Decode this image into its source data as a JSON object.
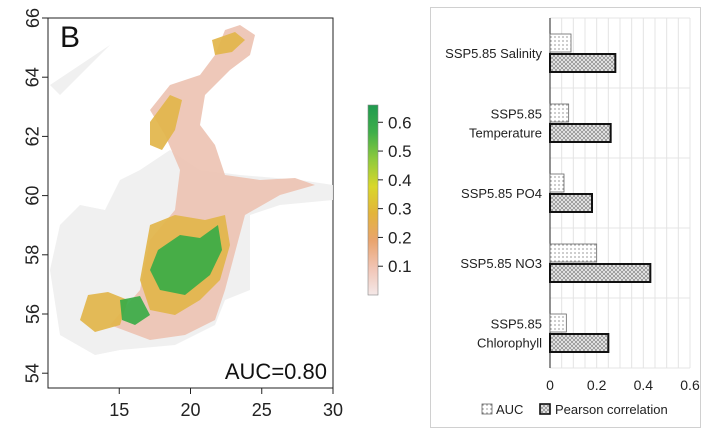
{
  "chart_data": [
    {
      "type": "heatmap",
      "panel_label": "B",
      "annotation": "AUC=0.80",
      "xlim": [
        10,
        30
      ],
      "ylim": [
        53.5,
        66
      ],
      "x_ticks": [
        15,
        20,
        25,
        30
      ],
      "y_ticks": [
        54,
        56,
        58,
        60,
        62,
        64,
        66
      ],
      "colorbar": {
        "range": [
          0,
          0.66
        ],
        "ticks": [
          0.1,
          0.2,
          0.3,
          0.4,
          0.5,
          0.6
        ],
        "colors": [
          "#f4e8e8",
          "#f1c4b4",
          "#e9a46e",
          "#e3b43b",
          "#d9d72a",
          "#8fca3c",
          "#3fae4a",
          "#1f9a4f"
        ]
      },
      "colors": {
        "background": "#efefef",
        "low": "#edc3b3",
        "mid": "#e2b54a",
        "high": "#3aab47"
      }
    },
    {
      "type": "bar",
      "orientation": "horizontal",
      "categories": [
        [
          "SSP5.85 Salinity"
        ],
        [
          "SSP5.85",
          "Temperature"
        ],
        [
          "SSP5.85 PO4"
        ],
        [
          "SSP5.85 NO3"
        ],
        [
          "SSP5.85",
          "Chlorophyll"
        ]
      ],
      "series": [
        {
          "name": "AUC",
          "values": [
            0.09,
            0.08,
            0.06,
            0.2,
            0.07
          ],
          "pattern": "dotted"
        },
        {
          "name": "Pearson correlation",
          "values": [
            0.28,
            0.26,
            0.18,
            0.43,
            0.25
          ],
          "pattern": "crosshatch"
        }
      ],
      "xlim": [
        0,
        0.6
      ],
      "x_ticks": [
        0,
        0.2,
        0.4,
        0.6
      ],
      "x_tick_labels": [
        "0",
        "0.2",
        "0.4",
        "0.6"
      ],
      "grid": true,
      "legend_position": "bottom"
    }
  ]
}
